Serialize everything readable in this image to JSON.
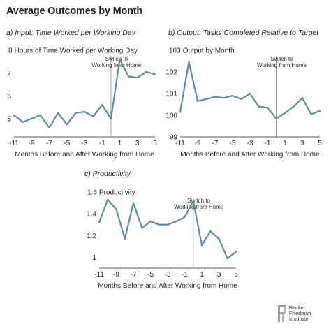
{
  "title": "Average Outcomes by Month",
  "logo": {
    "lines": [
      "Becker",
      "Friedman",
      "Institute"
    ]
  },
  "chart_data": [
    {
      "type": "line",
      "title": "a) Input: Time Worked per Working Day",
      "ylabel": "Hours of Time Worked per Working Day",
      "xlabel": "Months Before and After Working from Home",
      "annotation": [
        "Switch to",
        "Working from Home"
      ],
      "switch_x": 0,
      "ylim": [
        4.2,
        8
      ],
      "yticks": [
        5,
        6,
        7,
        8
      ],
      "ytick_labels": [
        "5",
        "6",
        "7",
        "8"
      ],
      "xlim": [
        -11,
        5
      ],
      "xticks": [
        -11,
        -9,
        -7,
        -5,
        -3,
        -1,
        1,
        3,
        5
      ],
      "x": [
        -11,
        -10,
        -9,
        -8,
        -7,
        -6,
        -5,
        -4,
        -3,
        -2,
        -1,
        0,
        1,
        2,
        3,
        4,
        5
      ],
      "values": [
        5.15,
        4.85,
        5.0,
        5.15,
        4.6,
        5.25,
        4.75,
        5.25,
        5.3,
        5.1,
        5.6,
        5.0,
        7.6,
        6.85,
        6.8,
        7.05,
        6.95
      ],
      "color": "#5b8fa0"
    },
    {
      "type": "line",
      "title": "b) Output: Tasks Completed Relative to Target",
      "ylabel": "Output by Month",
      "xlabel": "Months Before and After Working from Home",
      "annotation": [
        "Switch to",
        "Working from Home"
      ],
      "switch_x": 0,
      "ylim": [
        99,
        103
      ],
      "yticks": [
        99,
        100,
        101,
        102,
        103
      ],
      "ytick_labels": [
        "99",
        "100",
        "101",
        "102",
        "103"
      ],
      "xlim": [
        -11,
        5
      ],
      "xticks": [
        -11,
        -9,
        -7,
        -5,
        -3,
        -1,
        1,
        3,
        5
      ],
      "x": [
        -11,
        -10,
        -9,
        -8,
        -7,
        -6,
        -5,
        -4,
        -3,
        -2,
        -1,
        0,
        1,
        2,
        3,
        4,
        5
      ],
      "values": [
        100.15,
        102.45,
        100.65,
        100.75,
        100.85,
        100.8,
        100.9,
        100.75,
        101.0,
        100.4,
        100.35,
        99.85,
        100.1,
        100.4,
        100.8,
        100.05,
        100.2
      ],
      "color": "#5b8fa0"
    },
    {
      "type": "line",
      "title": "c) Productivity",
      "ylabel": "Productivity",
      "xlabel": "Months Before and After Working from Home",
      "annotation": [
        "Switch to",
        "Working from Home"
      ],
      "switch_x": 0,
      "ylim": [
        0.9,
        1.6
      ],
      "yticks": [
        1,
        1.2,
        1.4,
        1.6
      ],
      "ytick_labels": [
        "1",
        "1.2",
        "1.4",
        "1.6"
      ],
      "xlim": [
        -11,
        5
      ],
      "xticks": [
        -11,
        -9,
        -7,
        -5,
        -3,
        -1,
        1,
        3,
        5
      ],
      "x": [
        -11,
        -10,
        -9,
        -8,
        -7,
        -6,
        -5,
        -4,
        -3,
        -2,
        -1,
        0,
        1,
        2,
        3,
        4,
        5
      ],
      "values": [
        1.32,
        1.53,
        1.44,
        1.17,
        1.5,
        1.27,
        1.33,
        1.3,
        1.3,
        1.33,
        1.37,
        1.52,
        1.11,
        1.24,
        1.17,
        0.99,
        1.05
      ],
      "color": "#5b8fa0"
    }
  ]
}
